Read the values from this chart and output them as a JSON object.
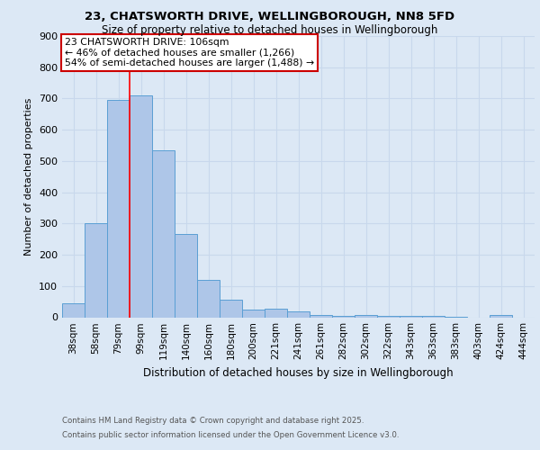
{
  "title1": "23, CHATSWORTH DRIVE, WELLINGBOROUGH, NN8 5FD",
  "title2": "Size of property relative to detached houses in Wellingborough",
  "xlabel": "Distribution of detached houses by size in Wellingborough",
  "ylabel": "Number of detached properties",
  "categories": [
    "38sqm",
    "58sqm",
    "79sqm",
    "99sqm",
    "119sqm",
    "140sqm",
    "160sqm",
    "180sqm",
    "200sqm",
    "221sqm",
    "241sqm",
    "261sqm",
    "282sqm",
    "302sqm",
    "322sqm",
    "343sqm",
    "363sqm",
    "383sqm",
    "403sqm",
    "424sqm",
    "444sqm"
  ],
  "values": [
    45,
    300,
    695,
    710,
    535,
    265,
    120,
    57,
    25,
    27,
    18,
    8,
    5,
    8,
    5,
    3,
    5,
    2,
    0,
    8,
    0
  ],
  "bar_color": "#aec6e8",
  "bar_edge_color": "#5a9fd4",
  "grid_color": "#c8d8ec",
  "background_color": "#dce8f5",
  "red_line_x": 3,
  "annotation_title": "23 CHATSWORTH DRIVE: 106sqm",
  "annotation_line2": "← 46% of detached houses are smaller (1,266)",
  "annotation_line3": "54% of semi-detached houses are larger (1,488) →",
  "annotation_box_color": "#ffffff",
  "annotation_border_color": "#cc0000",
  "footer1": "Contains HM Land Registry data © Crown copyright and database right 2025.",
  "footer2": "Contains public sector information licensed under the Open Government Licence v3.0.",
  "ylim": [
    0,
    900
  ],
  "yticks": [
    0,
    100,
    200,
    300,
    400,
    500,
    600,
    700,
    800,
    900
  ]
}
